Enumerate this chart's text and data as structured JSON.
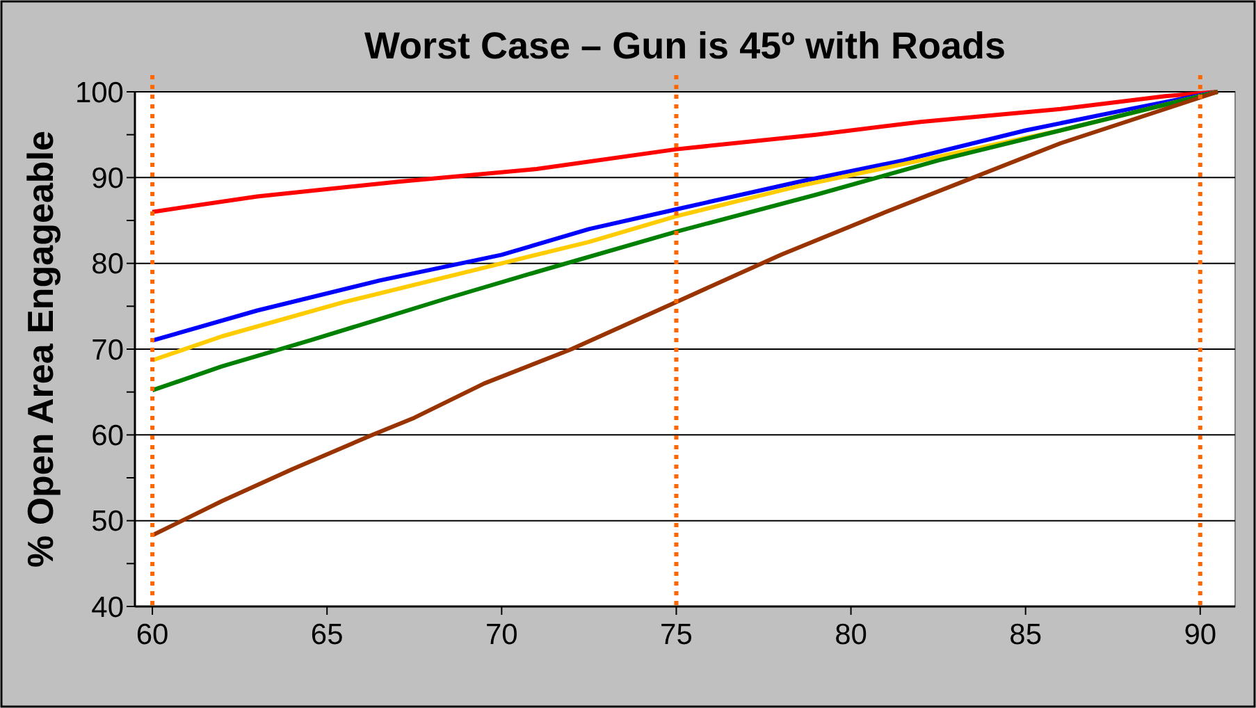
{
  "chart_data": {
    "type": "line",
    "title": "Worst Case – Gun is 45º with Roads",
    "ylabel": "% Open Area Engageable",
    "xlim": [
      59.5,
      91
    ],
    "xticks": [
      60,
      65,
      70,
      75,
      80,
      85,
      90
    ],
    "ylim": [
      40,
      100
    ],
    "yticks": [
      40,
      {
        "value": 45,
        "label": null
      },
      50,
      {
        "value": 55,
        "label": null
      },
      60,
      {
        "value": 65,
        "label": null
      },
      70,
      {
        "value": 75,
        "label": null
      },
      80,
      {
        "value": 85,
        "label": null
      },
      90,
      {
        "value": 95,
        "label": null
      },
      100
    ],
    "grid": "y",
    "line_style": "solid",
    "marker": "none",
    "series": [
      {
        "color": "#ff0000",
        "x": [
          60,
          63,
          67,
          71,
          75,
          79,
          82,
          86,
          89,
          90.5
        ],
        "values": [
          86,
          87.8,
          89.5,
          91,
          93.3,
          95,
          96.5,
          98,
          99.5,
          100
        ]
      },
      {
        "color": "#0000ff",
        "x": [
          60,
          63,
          66.5,
          70,
          72.5,
          75,
          78.5,
          81.5,
          85,
          88,
          90.5
        ],
        "values": [
          71,
          74.5,
          78,
          81,
          84,
          86.3,
          89.5,
          92,
          95.5,
          98,
          100
        ]
      },
      {
        "color": "#ffcc00",
        "x": [
          60,
          62,
          65.5,
          69.5,
          72.5,
          75,
          78.5,
          82,
          86,
          90.5
        ],
        "values": [
          68.7,
          71.5,
          75.5,
          79.5,
          82.5,
          85.5,
          89,
          92,
          95.5,
          100
        ]
      },
      {
        "color": "#008000",
        "x": [
          60,
          62,
          64.5,
          66.5,
          68.5,
          71,
          75,
          79,
          82.5,
          86,
          90.5
        ],
        "values": [
          65.2,
          68,
          71,
          73.5,
          76,
          79,
          83.7,
          88,
          92,
          95.5,
          100
        ]
      },
      {
        "color": "#993300",
        "x": [
          60,
          62,
          64,
          66.3,
          67.5,
          69.5,
          72,
          75,
          78,
          81,
          83.5,
          86,
          90.5
        ],
        "values": [
          48.3,
          52.3,
          56,
          60,
          62,
          66,
          70,
          75.5,
          81,
          86,
          90,
          94,
          100
        ]
      }
    ],
    "ref_lines": [
      {
        "axis": "x",
        "value": 60,
        "color": "#ff6600",
        "line_style": "dotted"
      },
      {
        "axis": "x",
        "value": 75,
        "color": "#ff6600",
        "line_style": "dotted"
      },
      {
        "axis": "x",
        "value": 90,
        "color": "#ff6600",
        "line_style": "dotted"
      }
    ]
  }
}
